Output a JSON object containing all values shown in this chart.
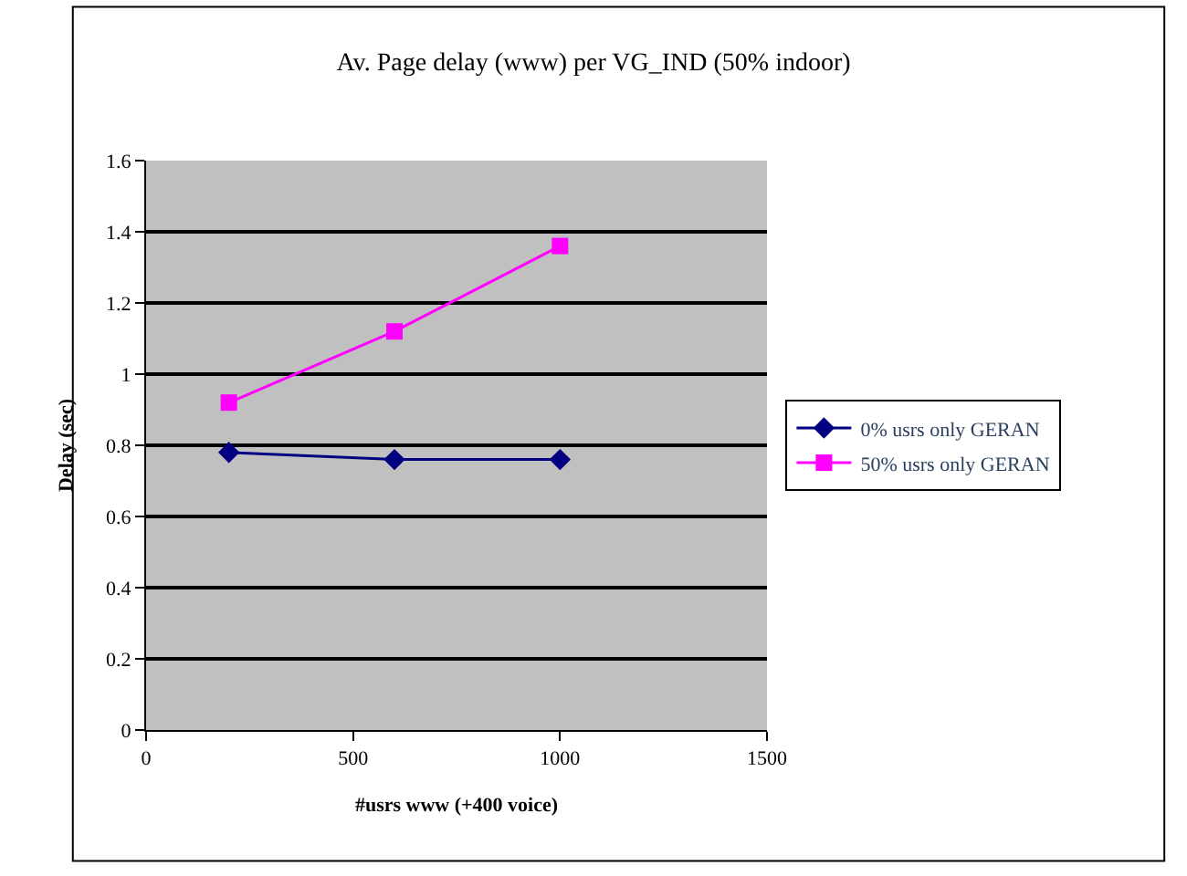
{
  "chart_data": {
    "type": "line",
    "title": "Av. Page delay (www) per VG_IND (50% indoor)",
    "xlabel": "#usrs www (+400 voice)",
    "ylabel": "Delay (sec)",
    "x": [
      200,
      600,
      1000
    ],
    "series": [
      {
        "name": "0% usrs only GERAN",
        "color": "#000080",
        "values": [
          0.78,
          0.76,
          0.76
        ],
        "marker": "diamond"
      },
      {
        "name": "50% usrs only GERAN",
        "color": "#ff00ff",
        "values": [
          0.92,
          1.12,
          1.36
        ],
        "marker": "square"
      }
    ],
    "xlim": [
      0,
      1500
    ],
    "xticks": [
      0,
      500,
      1000,
      1500
    ],
    "ylim": [
      0,
      1.6
    ],
    "yticks": [
      0,
      0.2,
      0.4,
      0.6,
      0.8,
      1,
      1.2,
      1.4,
      1.6
    ],
    "grid": "y",
    "legend": "right"
  }
}
